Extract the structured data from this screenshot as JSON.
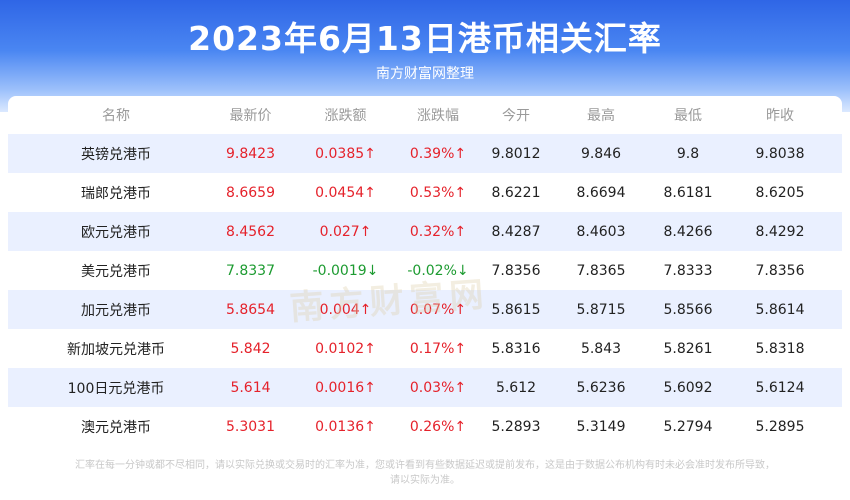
{
  "header": {
    "title": "2023年6月13日港币相关汇率",
    "subtitle": "南方财富网整理"
  },
  "table": {
    "columns": [
      "名称",
      "最新价",
      "涨跌额",
      "涨跌幅",
      "今开",
      "最高",
      "最低",
      "昨收"
    ],
    "rows": [
      {
        "name": "英镑兑港币",
        "latest": "9.8423",
        "change": "0.0385↑",
        "pct": "0.39%↑",
        "open": "9.8012",
        "high": "9.846",
        "low": "9.8",
        "prev": "9.8038",
        "trend": "up"
      },
      {
        "name": "瑞郎兑港币",
        "latest": "8.6659",
        "change": "0.0454↑",
        "pct": "0.53%↑",
        "open": "8.6221",
        "high": "8.6694",
        "low": "8.6181",
        "prev": "8.6205",
        "trend": "up"
      },
      {
        "name": "欧元兑港币",
        "latest": "8.4562",
        "change": "0.027↑",
        "pct": "0.32%↑",
        "open": "8.4287",
        "high": "8.4603",
        "low": "8.4266",
        "prev": "8.4292",
        "trend": "up"
      },
      {
        "name": "美元兑港币",
        "latest": "7.8337",
        "change": "-0.0019↓",
        "pct": "-0.02%↓",
        "open": "7.8356",
        "high": "7.8365",
        "low": "7.8333",
        "prev": "7.8356",
        "trend": "down"
      },
      {
        "name": "加元兑港币",
        "latest": "5.8654",
        "change": "0.004↑",
        "pct": "0.07%↑",
        "open": "5.8615",
        "high": "5.8715",
        "low": "5.8566",
        "prev": "5.8614",
        "trend": "up"
      },
      {
        "name": "新加坡元兑港币",
        "latest": "5.842",
        "change": "0.0102↑",
        "pct": "0.17%↑",
        "open": "5.8316",
        "high": "5.843",
        "low": "5.8261",
        "prev": "5.8318",
        "trend": "up"
      },
      {
        "name": "100日元兑港币",
        "latest": "5.614",
        "change": "0.0016↑",
        "pct": "0.03%↑",
        "open": "5.612",
        "high": "5.6236",
        "low": "5.6092",
        "prev": "5.6124",
        "trend": "up"
      },
      {
        "name": "澳元兑港币",
        "latest": "5.3031",
        "change": "0.0136↑",
        "pct": "0.26%↑",
        "open": "5.2893",
        "high": "5.3149",
        "low": "5.2794",
        "prev": "5.2895",
        "trend": "up"
      }
    ]
  },
  "watermark": "南方财富网",
  "footer": {
    "line1": "汇率在每一分钟或都不尽相同，请以实际兑换或交易时的汇率为准，您或许看到有些数据延迟或提前发布，这是由于数据公布机构有时未必会准时发布所导致，",
    "line2": "请以实际为准。"
  },
  "colors": {
    "up": "#e5222b",
    "down": "#1d9b31",
    "row_alt": "#eaf0ff",
    "header_blue": "#3a76ee"
  }
}
